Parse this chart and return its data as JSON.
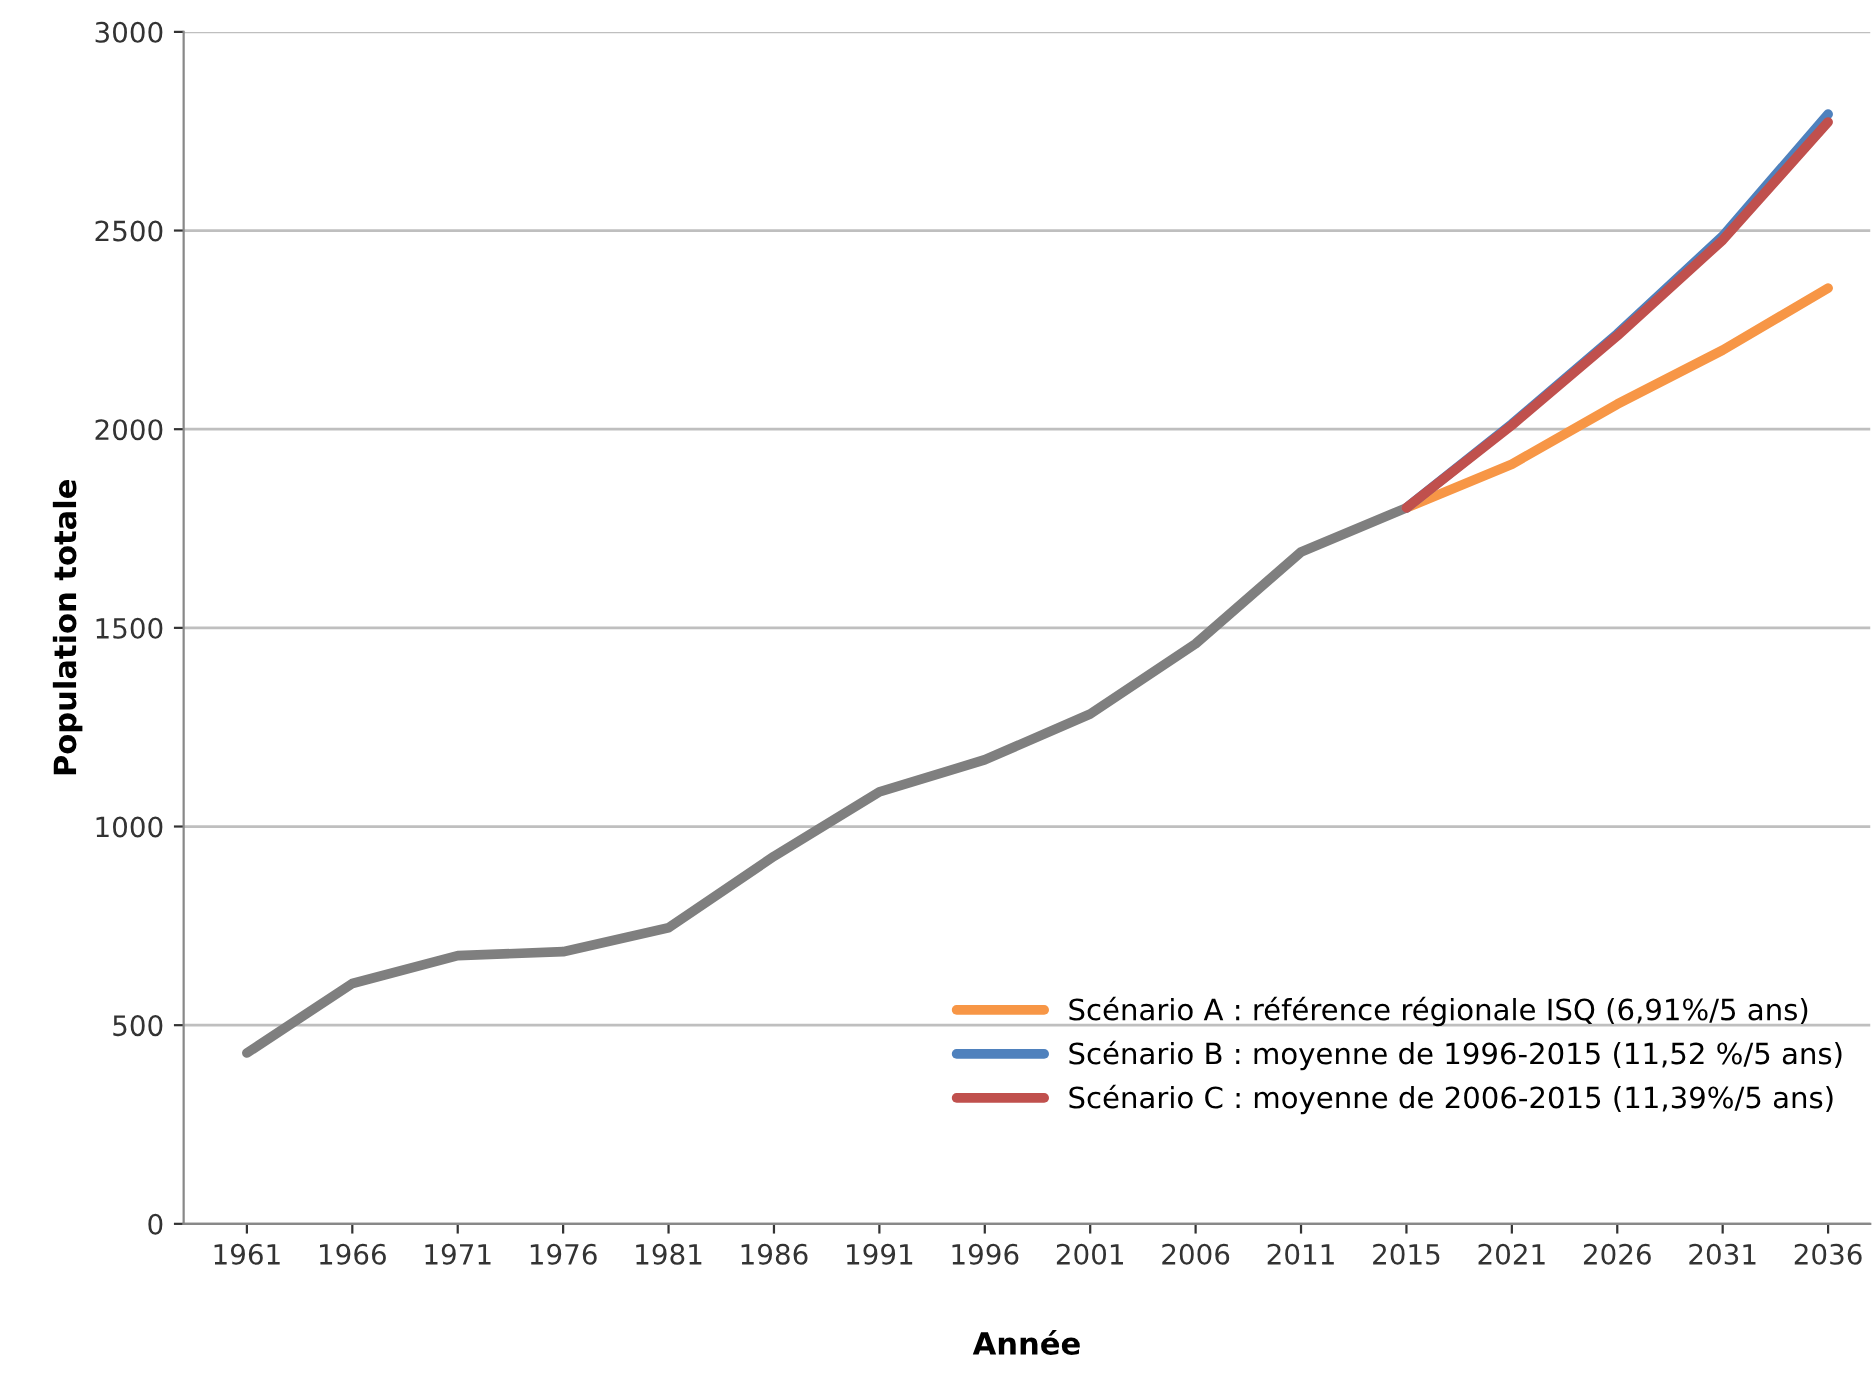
{
  "chart_data": {
    "type": "line",
    "xlabel": "Année",
    "ylabel": "Population totale",
    "categories": [
      "1961",
      "1966",
      "1971",
      "1976",
      "1981",
      "1986",
      "1991",
      "1996",
      "2001",
      "2006",
      "2011",
      "2015",
      "2021",
      "2026",
      "2031",
      "2036"
    ],
    "series": [
      {
        "color": "#7f7f7f",
        "values": [
          430,
          605,
          675,
          685,
          745,
          925,
          1087,
          1168,
          1283,
          1460,
          1691,
          1802,
          null,
          null,
          null,
          null
        ]
      },
      {
        "name": "Scénario A : référence régionale ISQ (6,91%/5 ans)",
        "color": "#f79646",
        "values": [
          null,
          null,
          null,
          null,
          null,
          null,
          null,
          null,
          null,
          null,
          null,
          1802,
          1912,
          2063,
          2199,
          2355
        ]
      },
      {
        "name": "Scénario B : moyenne de 1996-2015 (11,52 %/5 ans)",
        "color": "#4f81bd",
        "values": [
          null,
          null,
          null,
          null,
          null,
          null,
          null,
          null,
          null,
          null,
          null,
          1802,
          2013,
          2240,
          2486,
          2793
        ]
      },
      {
        "name": "Scénario C : moyenne de 2006-2015 (11,39%/5 ans)",
        "color": "#c0504d",
        "values": [
          null,
          null,
          null,
          null,
          null,
          null,
          null,
          null,
          null,
          null,
          null,
          1802,
          2010,
          2235,
          2476,
          2773
        ]
      }
    ],
    "ylim": [
      0,
      3000
    ],
    "yticks": [
      0,
      500,
      1000,
      1500,
      2000,
      2500,
      3000
    ],
    "grid": "y",
    "legend": "bottom right",
    "marker": "none",
    "line_style": "solid"
  }
}
